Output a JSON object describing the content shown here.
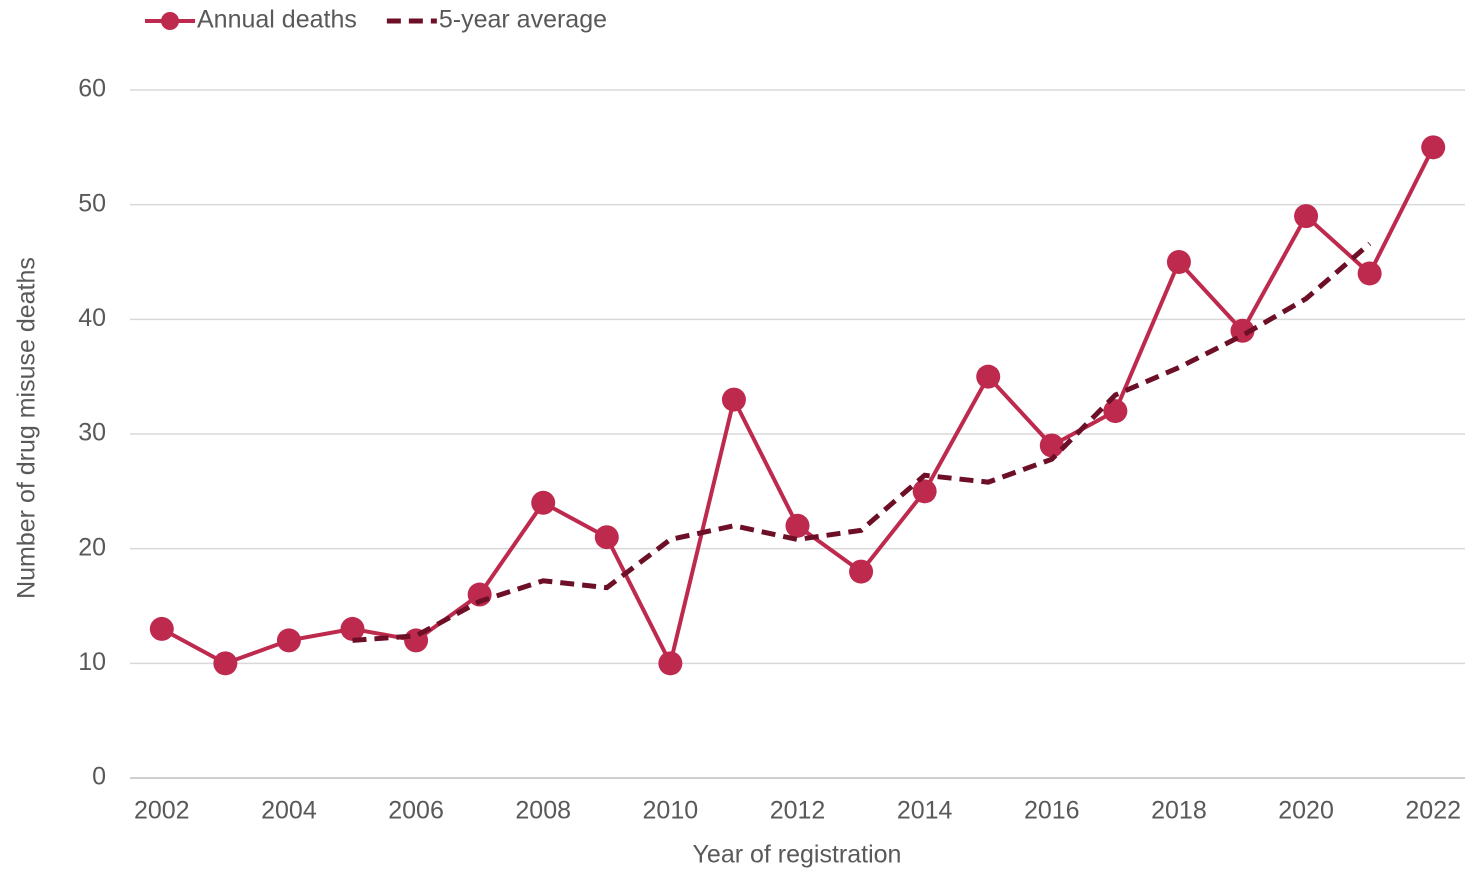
{
  "chart_data": {
    "type": "line",
    "x_label": "Year of registration",
    "y_label": "Number of drug misuse deaths",
    "x": [
      2002,
      2003,
      2004,
      2005,
      2006,
      2007,
      2008,
      2009,
      2010,
      2011,
      2012,
      2013,
      2014,
      2015,
      2016,
      2017,
      2018,
      2019,
      2020,
      2021,
      2022
    ],
    "series": [
      {
        "name": "Annual deaths",
        "color": "#be2a4e",
        "markers": true,
        "dashed": false,
        "values": [
          13,
          10,
          12,
          13,
          12,
          16,
          24,
          21,
          10,
          33,
          22,
          18,
          25,
          35,
          29,
          32,
          45,
          39,
          49,
          44,
          55
        ]
      },
      {
        "name": "5-year average",
        "color": "#6d0f27",
        "markers": false,
        "dashed": true,
        "values": [
          null,
          null,
          null,
          12,
          12.4,
          15.4,
          17.2,
          16.6,
          20.8,
          22,
          20.8,
          21.6,
          26.4,
          25.8,
          27.8,
          33.4,
          35.8,
          38.6,
          41.8,
          46.6,
          null
        ]
      }
    ],
    "xlim": [
      2001.5,
      2022.5
    ],
    "xticks": [
      2002,
      2004,
      2006,
      2008,
      2010,
      2012,
      2014,
      2016,
      2018,
      2020,
      2022
    ],
    "ylim": [
      0,
      60
    ],
    "yticks": [
      0,
      10,
      20,
      30,
      40,
      50,
      60
    ],
    "grid": true,
    "legend": "top-left"
  }
}
